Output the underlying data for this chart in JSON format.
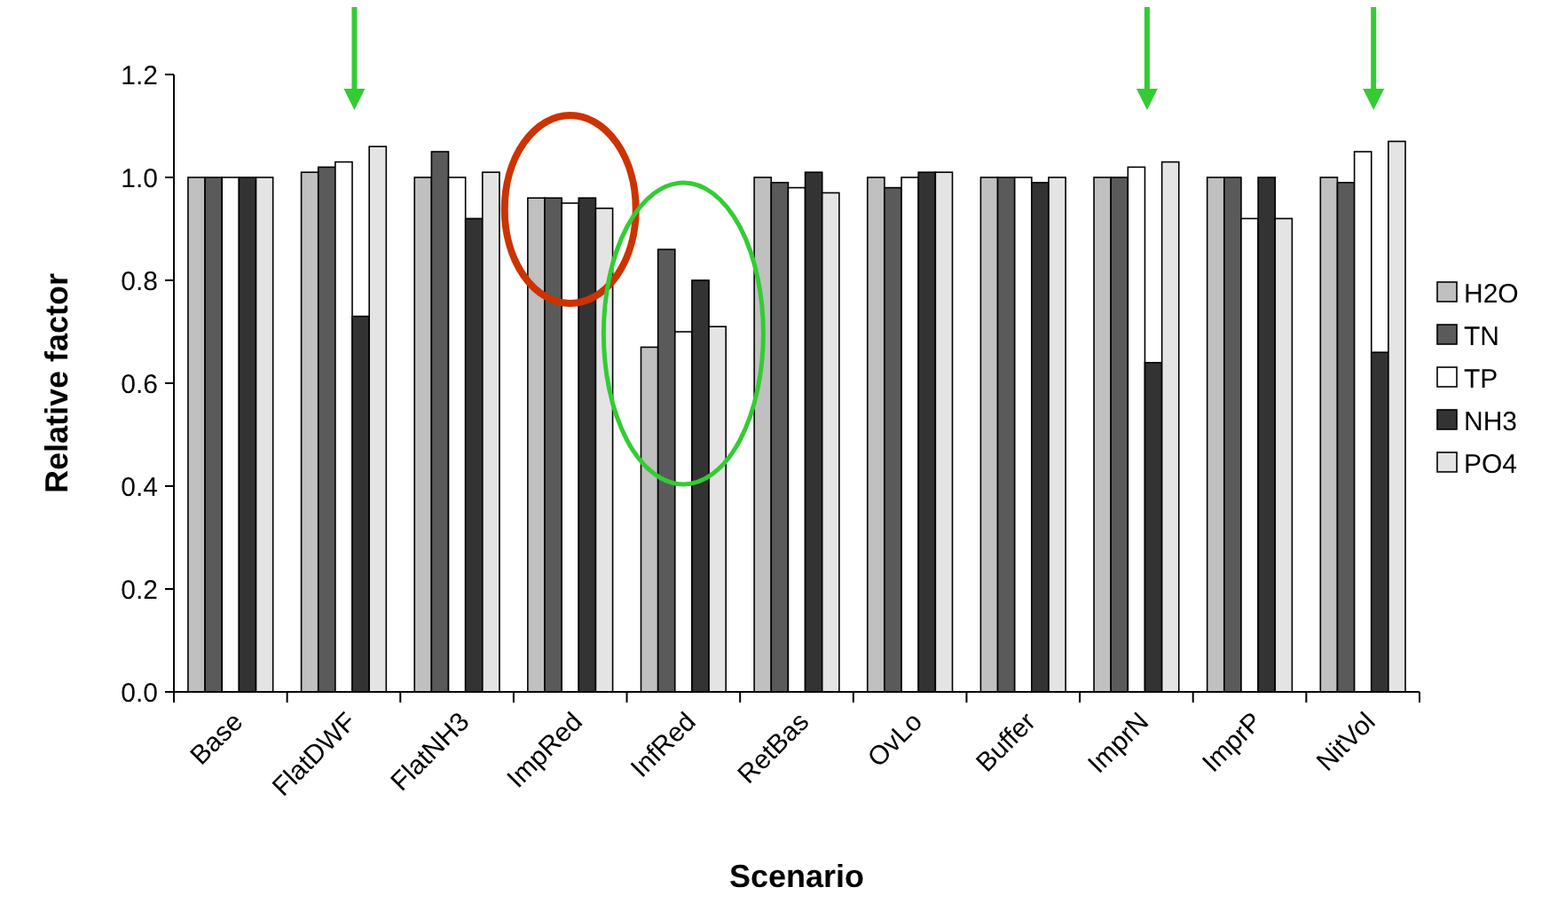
{
  "chart_data": {
    "type": "bar",
    "xlabel": "Scenario",
    "ylabel": "Relative factor",
    "categories": [
      "Base",
      "FlatDWF",
      "FlatNH3",
      "ImpRed",
      "InfRed",
      "RetBas",
      "OvLo",
      "Buffer",
      "ImprN",
      "ImprP",
      "NitVol"
    ],
    "series": [
      {
        "name": "H2O",
        "color": "#c0c0c0",
        "values": [
          1.0,
          1.01,
          1.0,
          0.96,
          0.67,
          1.0,
          1.0,
          1.0,
          1.0,
          1.0,
          1.0
        ]
      },
      {
        "name": "TN",
        "color": "#5a5a5a",
        "values": [
          1.0,
          1.02,
          1.05,
          0.96,
          0.86,
          0.99,
          0.98,
          1.0,
          1.0,
          1.0,
          0.99
        ]
      },
      {
        "name": "TP",
        "color": "#ffffff",
        "values": [
          1.0,
          1.03,
          1.0,
          0.95,
          0.7,
          0.98,
          1.0,
          1.0,
          1.02,
          0.92,
          1.05
        ]
      },
      {
        "name": "NH3",
        "color": "#333333",
        "values": [
          1.0,
          0.73,
          0.92,
          0.96,
          0.8,
          1.01,
          1.01,
          0.99,
          0.64,
          1.0,
          0.66
        ]
      },
      {
        "name": "PO4",
        "color": "#e4e4e4",
        "values": [
          1.0,
          1.06,
          1.01,
          0.94,
          0.71,
          0.97,
          1.01,
          1.0,
          1.03,
          0.92,
          1.07
        ]
      }
    ],
    "ylim": [
      0,
      1.2
    ],
    "yticks": [
      {
        "value": 0,
        "label": "0.0"
      },
      {
        "value": 0.2,
        "label": "0.2"
      },
      {
        "value": 0.4,
        "label": "0.4"
      },
      {
        "value": 0.6,
        "label": "0.6"
      },
      {
        "value": 0.8,
        "label": "0.8"
      },
      {
        "value": 1.0,
        "label": "1.0"
      },
      {
        "value": 1.2,
        "label": "1.2"
      }
    ],
    "grid": false,
    "legend": "right"
  }
}
